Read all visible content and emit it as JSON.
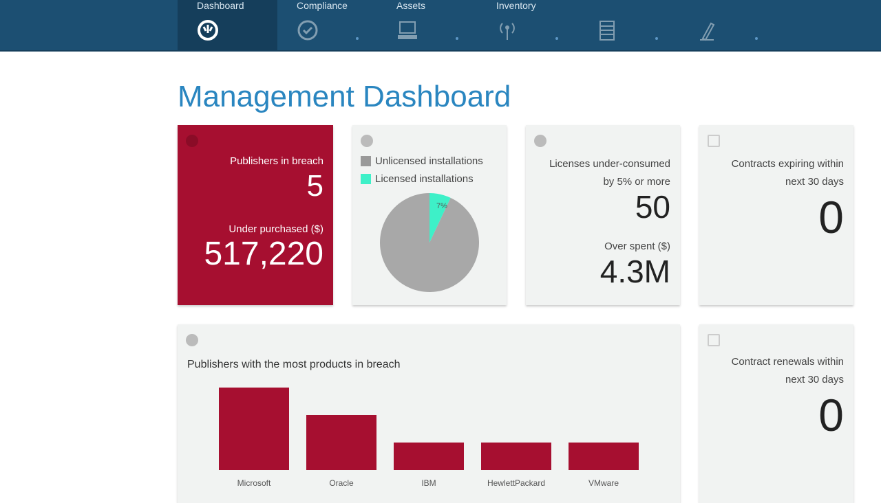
{
  "nav": {
    "tabs": [
      {
        "label": "Dashboard",
        "icon": "dashboard-gauge-icon",
        "active": true
      },
      {
        "label": "Compliance",
        "icon": "check-circle-icon"
      },
      {
        "label": "Assets",
        "icon": "laptop-icon"
      },
      {
        "label": "Inventory",
        "icon": "antenna-icon"
      },
      {
        "label": "",
        "icon": "building-icon"
      },
      {
        "label": "",
        "icon": "contract-pen-icon"
      }
    ]
  },
  "page_title": "Management Dashboard",
  "cards": {
    "breach": {
      "label": "Publishers in breach",
      "value": "5",
      "sub_label": "Under purchased ($)",
      "sub_value": "517,220"
    },
    "installs": {
      "legend": [
        "Unlicensed installations",
        "Licensed installations"
      ],
      "licensed_pct": "7%"
    },
    "under": {
      "label": "Licenses under-consumed by 5% or more",
      "value": "50",
      "sub_label": "Over spent ($)",
      "sub_value": "4.3M"
    },
    "expiring": {
      "label": "Contracts expiring within next 30 days",
      "value": "0"
    },
    "renewals": {
      "label": "Contract renewals within next 30 days",
      "value": "0"
    },
    "breach_chart_title": "Publishers with the most products in breach"
  },
  "colors": {
    "nav": "#1c4f72",
    "title": "#2a86c0",
    "accent_red": "#a60f30",
    "unlicensed": "#a8a8a8",
    "licensed": "#3ef0c8"
  },
  "chart_data": [
    {
      "type": "pie",
      "categories": [
        "Unlicensed installations",
        "Licensed installations"
      ],
      "values": [
        93,
        7
      ]
    },
    {
      "type": "bar",
      "title": "Publishers with the most products in breach",
      "categories": [
        "Microsoft",
        "Oracle",
        "IBM",
        "HewlettPackard",
        "VMware"
      ],
      "values": [
        3,
        2,
        1,
        1,
        1
      ]
    }
  ]
}
